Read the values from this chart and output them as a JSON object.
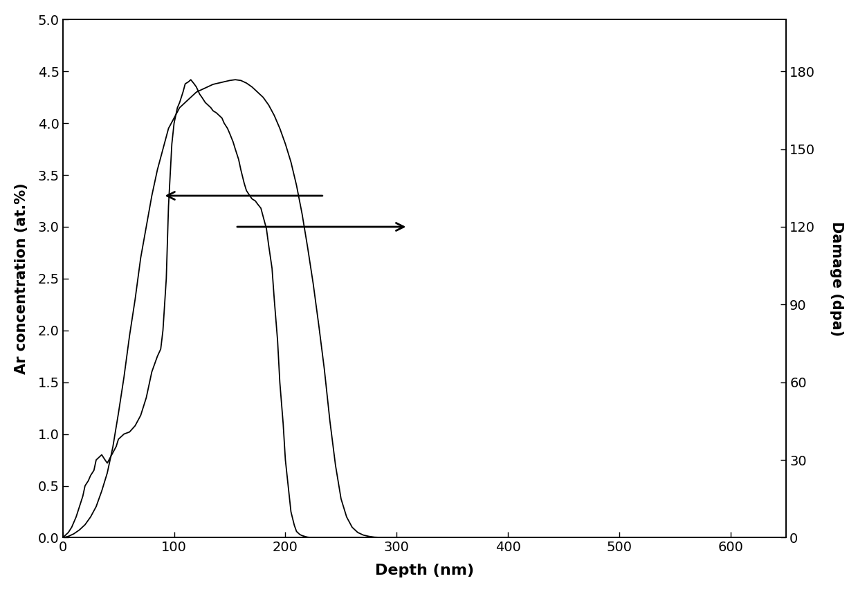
{
  "xlabel": "Depth (nm)",
  "ylabel_left": "Ar concentration (at.%)",
  "ylabel_right": "Damage (dpa)",
  "xlim": [
    0,
    650
  ],
  "ylim_left": [
    0,
    5.0
  ],
  "ylim_right": [
    0,
    200
  ],
  "yticks_left": [
    0.0,
    0.5,
    1.0,
    1.5,
    2.0,
    2.5,
    3.0,
    3.5,
    4.0,
    4.5,
    5.0
  ],
  "yticks_right": [
    0,
    30,
    60,
    90,
    120,
    150,
    180
  ],
  "xticks": [
    0,
    100,
    200,
    300,
    400,
    500,
    600
  ],
  "ar_depth": [
    0,
    5,
    8,
    10,
    12,
    15,
    18,
    20,
    23,
    25,
    28,
    30,
    33,
    35,
    38,
    40,
    43,
    45,
    48,
    50,
    55,
    60,
    65,
    70,
    75,
    80,
    85,
    88,
    90,
    93,
    95,
    98,
    100,
    103,
    105,
    108,
    110,
    113,
    115,
    118,
    120,
    123,
    125,
    128,
    130,
    133,
    135,
    138,
    140,
    143,
    145,
    148,
    150,
    153,
    155,
    158,
    160,
    163,
    165,
    168,
    170,
    173,
    175,
    178,
    180,
    183,
    185,
    188,
    190,
    193,
    195,
    198,
    200,
    203,
    205,
    208,
    210,
    213,
    215,
    218,
    220,
    223,
    225,
    228,
    230,
    233,
    235,
    238,
    240,
    243,
    245,
    248,
    250,
    255,
    260,
    265,
    270,
    275,
    280,
    285,
    290,
    295,
    300,
    310,
    320,
    330,
    340
  ],
  "ar_conc": [
    0,
    0.05,
    0.1,
    0.15,
    0.2,
    0.3,
    0.4,
    0.5,
    0.55,
    0.6,
    0.65,
    0.75,
    0.78,
    0.8,
    0.75,
    0.72,
    0.78,
    0.82,
    0.88,
    0.95,
    1.0,
    1.02,
    1.08,
    1.18,
    1.35,
    1.6,
    1.75,
    1.82,
    2.0,
    2.5,
    3.2,
    3.8,
    4.0,
    4.15,
    4.2,
    4.3,
    4.38,
    4.4,
    4.42,
    4.38,
    4.35,
    4.28,
    4.25,
    4.2,
    4.18,
    4.15,
    4.12,
    4.1,
    4.08,
    4.05,
    4.0,
    3.95,
    3.9,
    3.82,
    3.75,
    3.65,
    3.55,
    3.42,
    3.35,
    3.3,
    3.27,
    3.25,
    3.22,
    3.18,
    3.1,
    2.98,
    2.82,
    2.6,
    2.3,
    1.9,
    1.5,
    1.1,
    0.75,
    0.45,
    0.25,
    0.12,
    0.06,
    0.03,
    0.02,
    0.01,
    0.005,
    0.002,
    0.001,
    0,
    0,
    0,
    0,
    0,
    0,
    0,
    0,
    0,
    0,
    0,
    0,
    0,
    0,
    0,
    0,
    0,
    0,
    0,
    0,
    0,
    0,
    0,
    0
  ],
  "dmg_depth": [
    0,
    5,
    10,
    15,
    20,
    25,
    30,
    35,
    40,
    45,
    50,
    55,
    60,
    65,
    70,
    75,
    80,
    85,
    90,
    95,
    100,
    105,
    110,
    115,
    120,
    125,
    130,
    135,
    140,
    145,
    150,
    155,
    160,
    165,
    170,
    175,
    180,
    185,
    190,
    195,
    200,
    205,
    210,
    215,
    220,
    225,
    230,
    235,
    240,
    245,
    250,
    255,
    260,
    265,
    270,
    275,
    280,
    285,
    290,
    295,
    300,
    305,
    310,
    315,
    320,
    325,
    330,
    335,
    340,
    345
  ],
  "dmg_dpa": [
    0,
    0.5,
    1.5,
    3,
    5,
    8,
    12,
    18,
    25,
    35,
    48,
    62,
    78,
    92,
    108,
    120,
    132,
    142,
    150,
    158,
    162,
    166,
    168,
    170,
    172,
    173,
    174,
    175,
    175.5,
    176,
    176.5,
    176.8,
    176.5,
    175.5,
    174,
    172,
    170,
    167,
    163,
    158,
    152,
    145,
    136,
    125,
    112,
    98,
    82,
    65,
    45,
    28,
    15,
    8,
    4,
    2,
    1,
    0.5,
    0.2,
    0.1,
    0.05,
    0.02,
    0,
    0,
    0,
    0,
    0,
    0,
    0,
    0,
    0,
    0
  ]
}
